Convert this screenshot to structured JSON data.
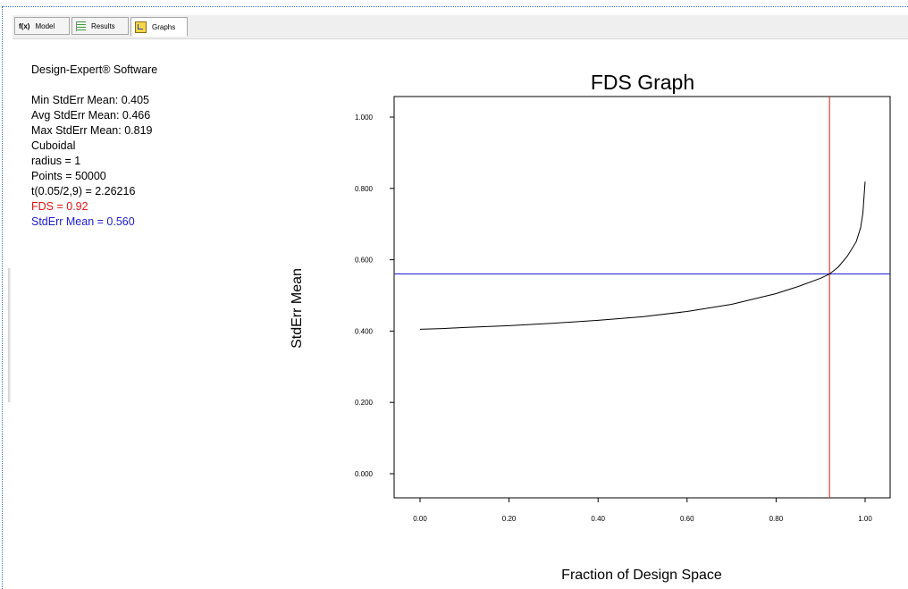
{
  "tabs": [
    {
      "icon": "fx-icon",
      "icon_text": "f(x)",
      "label": "Model"
    },
    {
      "icon": "results-icon",
      "label": "Results"
    },
    {
      "icon": "graphs-icon",
      "label": "Graphs"
    }
  ],
  "info": {
    "software": "Design-Expert® Software",
    "lines": [
      "Min StdErr Mean: 0.405",
      "Avg StdErr Mean: 0.466",
      "Max StdErr Mean: 0.819",
      "Cuboidal",
      "radius = 1",
      "Points = 50000",
      "t(0.05/2,9) = 2.26216"
    ],
    "fds_line": "FDS = 0.92",
    "stderr_line": "StdErr Mean = 0.560"
  },
  "chart_data": {
    "type": "line",
    "title": "FDS Graph",
    "xlabel": "Fraction of Design Space",
    "ylabel": "StdErr Mean",
    "xlim": [
      0,
      1
    ],
    "ylim": [
      0,
      1
    ],
    "xticks": [
      "0.00",
      "0.20",
      "0.40",
      "0.60",
      "0.80",
      "1.00"
    ],
    "yticks": [
      "0.000",
      "0.200",
      "0.400",
      "0.600",
      "0.800",
      "1.000"
    ],
    "series": [
      {
        "color": "#000000",
        "x": [
          0.0,
          0.05,
          0.1,
          0.2,
          0.3,
          0.4,
          0.5,
          0.6,
          0.7,
          0.8,
          0.85,
          0.9,
          0.92,
          0.94,
          0.96,
          0.98,
          0.99,
          0.995,
          1.0
        ],
        "y": [
          0.405,
          0.407,
          0.41,
          0.415,
          0.422,
          0.43,
          0.44,
          0.455,
          0.475,
          0.505,
          0.525,
          0.548,
          0.56,
          0.58,
          0.61,
          0.65,
          0.69,
          0.73,
          0.819
        ]
      }
    ],
    "reference_lines": {
      "vertical_x": 0.92,
      "vertical_color": "#e01818",
      "horizontal_y": 0.56,
      "horizontal_color": "#1c1cd0"
    },
    "grid": false
  }
}
